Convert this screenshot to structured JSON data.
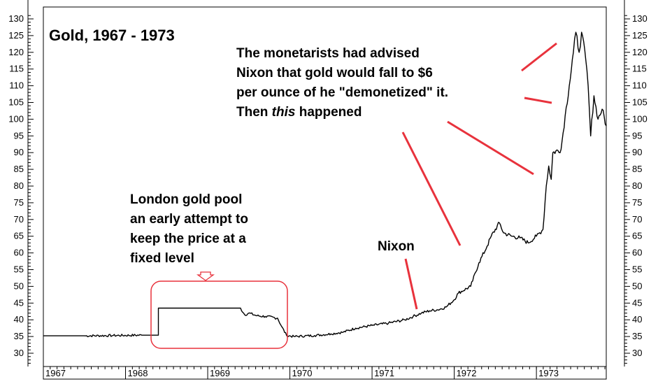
{
  "chart_data": {
    "type": "line",
    "title": "Gold, 1967 - 1973",
    "xlabel": "",
    "ylabel": "",
    "ylim": [
      26,
      131
    ],
    "xlim": [
      1967.0,
      1973.85
    ],
    "grid": true,
    "y_ticks": [
      30,
      35,
      40,
      45,
      50,
      55,
      60,
      65,
      70,
      75,
      80,
      85,
      90,
      95,
      100,
      105,
      110,
      115,
      120,
      125,
      130
    ],
    "x_ticks": [
      "1967",
      "1968",
      "1969",
      "1970",
      "1971",
      "1972",
      "1973"
    ],
    "series": [
      {
        "color": "#000000",
        "points": [
          [
            1967.0,
            35.2
          ],
          [
            1967.5,
            35.2
          ],
          [
            1967.85,
            35.3
          ],
          [
            1968.2,
            35.4
          ],
          [
            1968.4,
            35.4
          ],
          [
            1968.4,
            43.5
          ],
          [
            1968.8,
            43.5
          ],
          [
            1969.2,
            43.5
          ],
          [
            1969.4,
            43.5
          ],
          [
            1969.45,
            41.5
          ],
          [
            1969.5,
            42.0
          ],
          [
            1969.6,
            41.2
          ],
          [
            1969.7,
            41.0
          ],
          [
            1969.85,
            40.5
          ],
          [
            1969.9,
            38.0
          ],
          [
            1969.96,
            35.3
          ],
          [
            1970.05,
            35.0
          ],
          [
            1970.3,
            35.3
          ],
          [
            1970.5,
            35.8
          ],
          [
            1970.65,
            36.3
          ],
          [
            1970.8,
            37.5
          ],
          [
            1971.0,
            38.3
          ],
          [
            1971.2,
            39.0
          ],
          [
            1971.4,
            40.0
          ],
          [
            1971.5,
            41.0
          ],
          [
            1971.6,
            42.0
          ],
          [
            1971.7,
            42.7
          ],
          [
            1971.8,
            43.0
          ],
          [
            1971.9,
            43.8
          ],
          [
            1972.0,
            46.0
          ],
          [
            1972.05,
            48.0
          ],
          [
            1972.2,
            50.0
          ],
          [
            1972.3,
            57.0
          ],
          [
            1972.4,
            62.0
          ],
          [
            1972.45,
            65.0
          ],
          [
            1972.55,
            69.0
          ],
          [
            1972.6,
            66.0
          ],
          [
            1972.7,
            65.0
          ],
          [
            1972.8,
            64.5
          ],
          [
            1972.9,
            63.0
          ],
          [
            1973.0,
            65.0
          ],
          [
            1973.08,
            67.0
          ],
          [
            1973.12,
            80.0
          ],
          [
            1973.15,
            86.0
          ],
          [
            1973.18,
            82.0
          ],
          [
            1973.2,
            90.0
          ],
          [
            1973.3,
            91.0
          ],
          [
            1973.35,
            101.0
          ],
          [
            1973.4,
            110.0
          ],
          [
            1973.45,
            120.0
          ],
          [
            1973.48,
            126.0
          ],
          [
            1973.52,
            120.0
          ],
          [
            1973.55,
            126.0
          ],
          [
            1973.6,
            118.0
          ],
          [
            1973.63,
            110.0
          ],
          [
            1973.66,
            95.0
          ],
          [
            1973.7,
            107.0
          ],
          [
            1973.75,
            100.0
          ],
          [
            1973.8,
            103.0
          ],
          [
            1973.85,
            98.0
          ]
        ]
      }
    ],
    "annotations": [
      {
        "lines": [
          "The monetarists had advised",
          "Nixon that gold would fall to $6",
          "per ounce of he \"demonetized\" it."
        ],
        "last_prefix": "Then ",
        "last_emphasis": "this",
        "last_suffix": " happened",
        "color": "#000000"
      },
      {
        "lines": [
          "London gold pool",
          "an early attempt to",
          "keep the price at a",
          "fixed level"
        ],
        "color": "#000000"
      },
      {
        "lines": [
          "Nixon"
        ],
        "color": "#000000"
      }
    ],
    "highlight_color": "#e8323c"
  }
}
